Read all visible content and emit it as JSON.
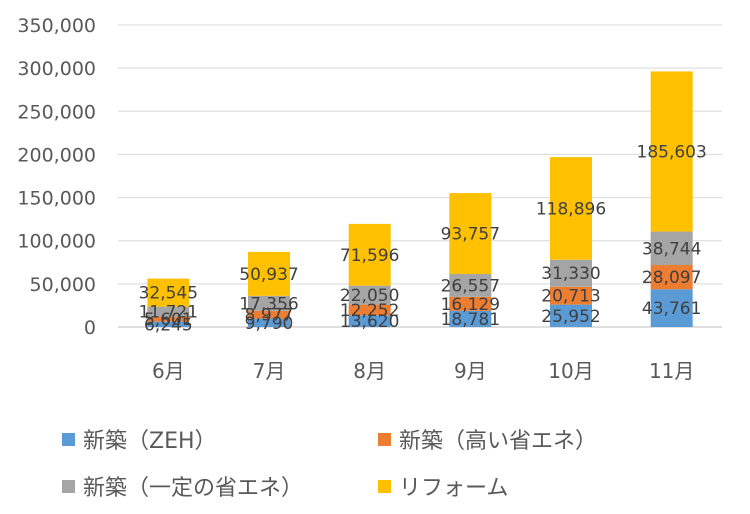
{
  "chart_data": {
    "type": "bar",
    "stacked": true,
    "title": "",
    "xlabel": "",
    "ylabel": "",
    "ylim": [
      0,
      350000
    ],
    "yticks": [
      0,
      50000,
      100000,
      150000,
      200000,
      250000,
      300000,
      350000
    ],
    "ytick_labels": [
      "0",
      "50,000",
      "100,000",
      "150,000",
      "200,000",
      "250,000",
      "300,000",
      "350,000"
    ],
    "grid": true,
    "legend_position": "bottom",
    "categories": [
      "6月",
      "7月",
      "8月",
      "9月",
      "10月",
      "11月"
    ],
    "series": [
      {
        "name": "新築（ZEH）",
        "color": "#5B9BD5",
        "values": [
          6245,
          9790,
          13620,
          18781,
          25952,
          43761
        ],
        "labels": [
          "6,245",
          "9,790",
          "13,620",
          "18,781",
          "25,952",
          "43,761"
        ]
      },
      {
        "name": "新築（高い省エネ）",
        "color": "#ED7D31",
        "values": [
          5601,
          8977,
          12252,
          16129,
          20713,
          28097
        ],
        "labels": [
          "5,601",
          "8,977",
          "12,252",
          "16,129",
          "20,713",
          "28,097"
        ]
      },
      {
        "name": "新築（一定の省エネ）",
        "color": "#A5A5A5",
        "values": [
          11721,
          17356,
          22050,
          26557,
          31330,
          38744
        ],
        "labels": [
          "11,721",
          "17,356",
          "22,050",
          "26,557",
          "31,330",
          "38,744"
        ]
      },
      {
        "name": "リフォーム",
        "color": "#FFC000",
        "values": [
          32545,
          50937,
          71596,
          93757,
          118896,
          185603
        ],
        "labels": [
          "32,545",
          "50,937",
          "71,596",
          "93,757",
          "118,896",
          "185,603"
        ]
      }
    ]
  }
}
